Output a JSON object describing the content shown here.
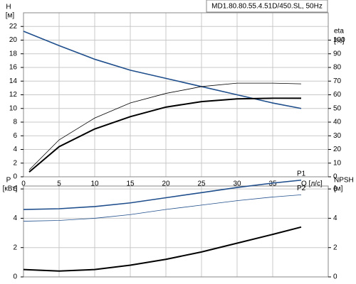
{
  "chart_data": [
    {
      "type": "line",
      "title": "MD1.80.80.55.4.51D/450.SL, 50Hz",
      "x_label": "Q [л/с]",
      "y_label": "H",
      "y_unit": "[м]",
      "y2_label": "eta",
      "y2_unit": "[%]",
      "xlim": [
        0,
        42.8
      ],
      "xticks": [
        0,
        5,
        10,
        15,
        20,
        25,
        30,
        35
      ],
      "ylim": [
        0,
        24
      ],
      "yticks": [
        0,
        2,
        4,
        6,
        8,
        10,
        12,
        14,
        16,
        18,
        20,
        22
      ],
      "y2lim": [
        0,
        120
      ],
      "y2ticks": [
        0,
        10,
        20,
        30,
        40,
        50,
        60,
        70,
        80,
        90,
        100
      ],
      "grid": true,
      "series": [
        {
          "color": "#1f4e8c",
          "linewidth": 1.6,
          "x": [
            0,
            5,
            10,
            15,
            20,
            25,
            30,
            35,
            39
          ],
          "values": [
            21.3,
            19.2,
            17.2,
            15.6,
            14.4,
            13.2,
            12.0,
            10.8,
            10.0
          ]
        },
        {
          "color": "#000000",
          "linewidth": 2,
          "axis": "y2",
          "x": [
            0.8,
            5,
            10,
            15,
            20,
            25,
            30,
            35,
            39
          ],
          "values": [
            3.5,
            22,
            35,
            44,
            51,
            55,
            57,
            57.5,
            57.5
          ]
        },
        {
          "color": "#000000",
          "linewidth": 0.8,
          "axis": "y2",
          "x": [
            0.8,
            5,
            10,
            15,
            20,
            25,
            30,
            35,
            39
          ],
          "values": [
            5,
            27,
            43,
            54,
            61,
            66,
            68.5,
            68.5,
            68
          ]
        }
      ]
    },
    {
      "type": "line",
      "y_label": "P",
      "y_unit": "[кВт]",
      "y2_label": "NPSH",
      "y2_unit": "[м]",
      "xlim": [
        0,
        42.8
      ],
      "xticks": [
        0,
        5,
        10,
        15,
        20,
        25,
        30,
        35
      ],
      "ylim": [
        0,
        6.2
      ],
      "yticks": [
        0,
        2,
        4,
        6
      ],
      "y2lim": [
        0,
        6.2
      ],
      "y2ticks": [
        0,
        2,
        4,
        6
      ],
      "grid": true,
      "series": [
        {
          "name": "P1",
          "color": "#1f4e8c",
          "linewidth": 1.6,
          "x": [
            0,
            5,
            10,
            15,
            20,
            25,
            30,
            35,
            39
          ],
          "values": [
            4.6,
            4.65,
            4.8,
            5.05,
            5.4,
            5.75,
            6.1,
            6.4,
            6.6
          ]
        },
        {
          "name": "P2",
          "color": "#1f4e8c",
          "linewidth": 0.8,
          "x": [
            0,
            5,
            10,
            15,
            20,
            25,
            30,
            35,
            39
          ],
          "values": [
            3.8,
            3.85,
            4.0,
            4.25,
            4.6,
            4.9,
            5.2,
            5.45,
            5.6
          ]
        },
        {
          "color": "#000000",
          "linewidth": 2,
          "axis": "y2",
          "x": [
            0,
            5,
            10,
            15,
            20,
            25,
            30,
            35,
            39
          ],
          "values": [
            0.5,
            0.4,
            0.5,
            0.8,
            1.2,
            1.7,
            2.3,
            2.9,
            3.4
          ]
        }
      ]
    }
  ]
}
